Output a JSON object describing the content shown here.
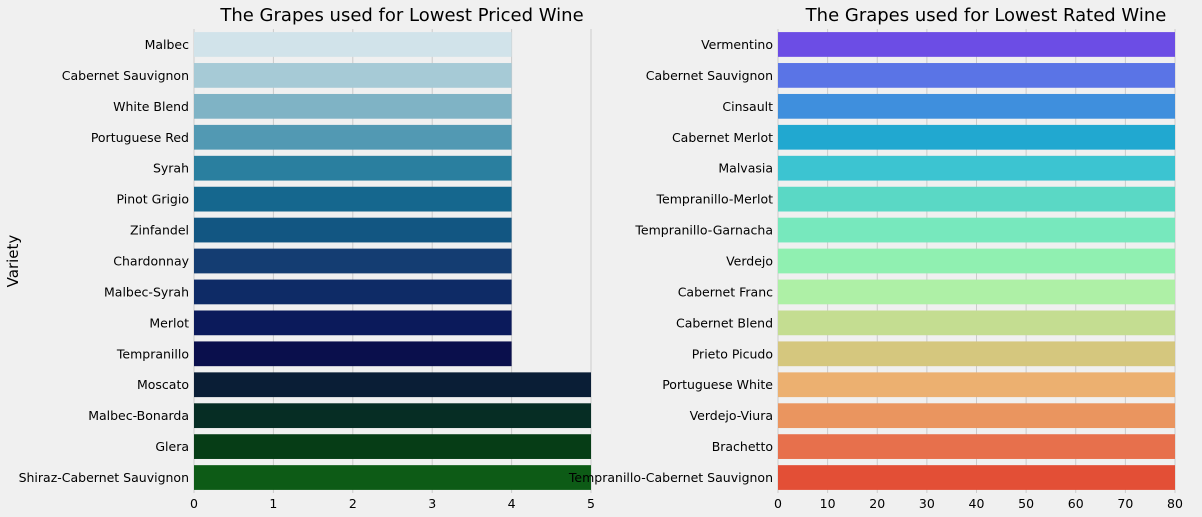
{
  "chart_data": [
    {
      "type": "bar",
      "orientation": "horizontal",
      "title": "The Grapes used for Lowest Priced Wine",
      "xlabel": "",
      "ylabel": "Variety",
      "xlim": [
        0,
        5
      ],
      "xticks": [
        0,
        1,
        2,
        3,
        4,
        5
      ],
      "grid": true,
      "categories": [
        "Malbec",
        "Cabernet Sauvignon",
        "White Blend",
        "Portuguese Red",
        "Syrah",
        "Pinot Grigio",
        "Zinfandel",
        "Chardonnay",
        "Malbec-Syrah",
        "Merlot",
        "Tempranillo",
        "Moscato",
        "Malbec-Bonarda",
        "Glera",
        "Shiraz-Cabernet Sauvignon"
      ],
      "values": [
        4,
        4,
        4,
        4,
        4,
        4,
        4,
        4,
        4,
        4,
        4,
        5,
        5,
        5,
        5
      ],
      "colors": [
        "#d1e3ea",
        "#a6cad6",
        "#7fb3c5",
        "#5299b3",
        "#2a7f9f",
        "#15678e",
        "#125682",
        "#143d72",
        "#0e2b66",
        "#0b1a5b",
        "#0a0f4c",
        "#0a1e36",
        "#062d24",
        "#063d16",
        "#0d5b16"
      ]
    },
    {
      "type": "bar",
      "orientation": "horizontal",
      "title": "The Grapes used for Lowest Rated Wine",
      "xlabel": "",
      "ylabel": "",
      "xlim": [
        0,
        80
      ],
      "xticks": [
        0,
        10,
        20,
        30,
        40,
        50,
        60,
        70,
        80
      ],
      "grid": true,
      "categories": [
        "Vermentino",
        "Cabernet Sauvignon",
        "Cinsault",
        "Cabernet Merlot",
        "Malvasia",
        "Tempranillo-Merlot",
        "Tempranillo-Garnacha",
        "Verdejo",
        "Cabernet Franc",
        "Cabernet Blend",
        "Prieto Picudo",
        "Portuguese White",
        "Verdejo-Viura",
        "Brachetto",
        "Tempranillo-Cabernet Sauvignon"
      ],
      "values": [
        80,
        80,
        80,
        80,
        80,
        80,
        80,
        80,
        80,
        80,
        80,
        80,
        80,
        80,
        80
      ],
      "colors": [
        "#6c4de5",
        "#5a74e6",
        "#3f8fdd",
        "#21a8d0",
        "#3cc4d1",
        "#5ad8c5",
        "#77e8bd",
        "#90f0b1",
        "#aef0a6",
        "#c4dd91",
        "#d5c77e",
        "#ecb070",
        "#ea955f",
        "#e7704c",
        "#e34f36"
      ]
    }
  ]
}
